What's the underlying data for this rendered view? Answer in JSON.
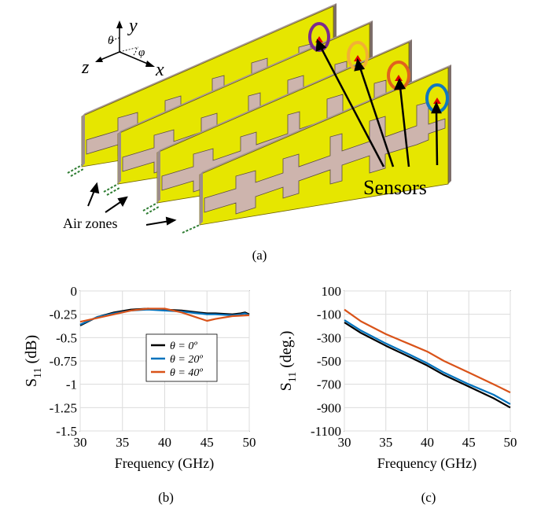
{
  "captions": {
    "a": "(a)",
    "b": "(b)",
    "c": "(c)"
  },
  "diagram": {
    "axes": {
      "x": "x",
      "y": "y",
      "z": "z",
      "theta": "θ",
      "phi": "φ"
    },
    "sensors_label": "Sensors",
    "air_zones_label": "Air zones",
    "colors": {
      "panel_face": "#e6e600",
      "panel_edge": "#8c7b78",
      "strip": "#cdb4ad",
      "marker": "#e00000",
      "rings": [
        "#7b2a8e",
        "#f2b134",
        "#e0621e",
        "#1177c0"
      ]
    }
  },
  "chart_data": [
    {
      "type": "line",
      "xlabel": "Frequency (GHz)",
      "ylabel": "S11 (dB)",
      "ylabel_main": "S",
      "ylabel_sub": "11",
      "ylabel_unit": " (dB)",
      "xlim": [
        30,
        50
      ],
      "ylim": [
        -1.5,
        0
      ],
      "xticks": [
        30,
        35,
        40,
        45,
        50
      ],
      "yticks": [
        0,
        -0.25,
        -0.5,
        -0.75,
        -1,
        -1.25,
        -1.5
      ],
      "ytick_labels": [
        "0",
        "-0.25",
        "-0.5",
        "-0.75",
        "-1",
        "-1.25",
        "-1.5"
      ],
      "grid": true,
      "legend_position": "center-right",
      "series": [
        {
          "name": "θ = 0º",
          "color": "#000000",
          "x": [
            30,
            32,
            34,
            36,
            38,
            40,
            42,
            44,
            45,
            46,
            48,
            49,
            49.5,
            50
          ],
          "y": [
            -0.37,
            -0.28,
            -0.23,
            -0.2,
            -0.19,
            -0.2,
            -0.21,
            -0.23,
            -0.24,
            -0.24,
            -0.25,
            -0.24,
            -0.23,
            -0.25
          ]
        },
        {
          "name": "θ = 20º",
          "color": "#0072bd",
          "x": [
            30,
            32,
            34,
            36,
            38,
            40,
            42,
            44,
            45,
            46,
            48,
            49,
            49.5,
            50
          ],
          "y": [
            -0.36,
            -0.28,
            -0.24,
            -0.21,
            -0.2,
            -0.21,
            -0.22,
            -0.24,
            -0.25,
            -0.25,
            -0.26,
            -0.25,
            -0.24,
            -0.26
          ]
        },
        {
          "name": "θ = 40º",
          "color": "#d95319",
          "x": [
            30,
            32,
            34,
            36,
            38,
            40,
            42,
            44,
            45,
            46,
            48,
            50
          ],
          "y": [
            -0.33,
            -0.29,
            -0.25,
            -0.21,
            -0.19,
            -0.19,
            -0.23,
            -0.29,
            -0.32,
            -0.3,
            -0.27,
            -0.26
          ]
        }
      ]
    },
    {
      "type": "line",
      "xlabel": "Frequency (GHz)",
      "ylabel": "S11 (deg.)",
      "ylabel_main": "S",
      "ylabel_sub": "11",
      "ylabel_unit": " (deg.)",
      "xlim": [
        30,
        50
      ],
      "ylim": [
        -1100,
        100
      ],
      "xticks": [
        30,
        35,
        40,
        45,
        50
      ],
      "yticks": [
        100,
        -100,
        -300,
        -500,
        -700,
        -900,
        -1100
      ],
      "ytick_labels": [
        "100",
        "-100",
        "-300",
        "-500",
        "-700",
        "-900",
        "-1100"
      ],
      "grid": true,
      "series": [
        {
          "color": "#000000",
          "x": [
            30,
            32,
            35,
            38,
            40,
            42,
            45,
            48,
            50
          ],
          "y": [
            -170,
            -260,
            -370,
            -470,
            -540,
            -620,
            -720,
            -820,
            -900
          ]
        },
        {
          "color": "#0072bd",
          "x": [
            30,
            32,
            35,
            38,
            40,
            42,
            45,
            48,
            50
          ],
          "y": [
            -150,
            -240,
            -350,
            -450,
            -520,
            -600,
            -700,
            -790,
            -870
          ]
        },
        {
          "color": "#d95319",
          "x": [
            30,
            32,
            35,
            38,
            40,
            42,
            45,
            48,
            50
          ],
          "y": [
            -60,
            -160,
            -270,
            -360,
            -420,
            -500,
            -600,
            -700,
            -770
          ]
        }
      ]
    }
  ]
}
